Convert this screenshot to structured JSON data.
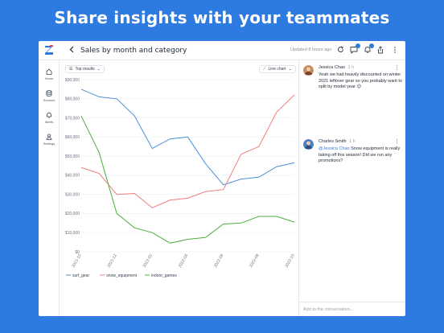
{
  "headline": "Share insights with your teammates",
  "colors": {
    "accent": "#2d7be0",
    "surf_gear": "#4a90d9",
    "snow_equipment": "#f27c7c",
    "indoor_games": "#4caf3d"
  },
  "header": {
    "back_icon": "chevron-left-icon",
    "title": "Sales by month and category",
    "updated": "Updated 8 hours ago",
    "icons": [
      "refresh-icon",
      "comments-icon",
      "notifications-icon",
      "share-icon",
      "more-icon"
    ]
  },
  "sidebar": {
    "items": [
      {
        "label": "Home",
        "icon": "home-icon"
      },
      {
        "label": "Sources",
        "icon": "database-icon"
      },
      {
        "label": "Alerts",
        "icon": "bell-icon"
      },
      {
        "label": "Settings",
        "icon": "user-settings-icon"
      }
    ]
  },
  "filters": {
    "results": "Top results",
    "chart_type": "Line chart"
  },
  "chart_data": {
    "type": "line",
    "x": [
      "2021-10",
      "2021-11",
      "2021-12",
      "2022-01",
      "2022-02",
      "2022-03",
      "2022-04",
      "2022-05",
      "2022-06",
      "2022-07",
      "2022-08",
      "2022-09",
      "2022-10"
    ],
    "x_ticks": [
      "2021-10",
      "2021-12",
      "2022-02",
      "2022-04",
      "2022-06",
      "2022-08",
      "2022-10"
    ],
    "y_ticks": [
      "$90,000",
      "$80,000",
      "$70,000",
      "$60,000",
      "$50,000",
      "$40,000",
      "$30,000",
      "$20,000",
      "$10,000",
      "$0"
    ],
    "ylim": [
      0,
      90000
    ],
    "series": [
      {
        "name": "surf_gear",
        "values": [
          85000,
          81000,
          80000,
          71000,
          54000,
          59000,
          60000,
          46000,
          35000,
          38000,
          39000,
          44500,
          46500
        ]
      },
      {
        "name": "snow_equipment",
        "values": [
          44000,
          41000,
          30000,
          30500,
          23000,
          27000,
          28000,
          31500,
          32500,
          51000,
          55000,
          73000,
          82000
        ]
      },
      {
        "name": "indoor_games",
        "values": [
          71000,
          52000,
          20000,
          12500,
          10000,
          4500,
          6500,
          7500,
          14500,
          15000,
          18500,
          18500,
          15500
        ]
      }
    ],
    "grid": true,
    "legend": "bottom-left"
  },
  "conversation": {
    "messages": [
      {
        "author": "Jessica Chao",
        "time": "2 h",
        "text": "Yeah we had heavily discounted on winter 2021 leftover gear so you probably want to split by model year 😉"
      },
      {
        "author": "Charles Smith",
        "time": "1 h",
        "mention": "@Jessica Chao",
        "text": " Snow equipment is really taking off this season! Did we run any promotions?"
      }
    ],
    "placeholder": "Add to the conversation..."
  }
}
